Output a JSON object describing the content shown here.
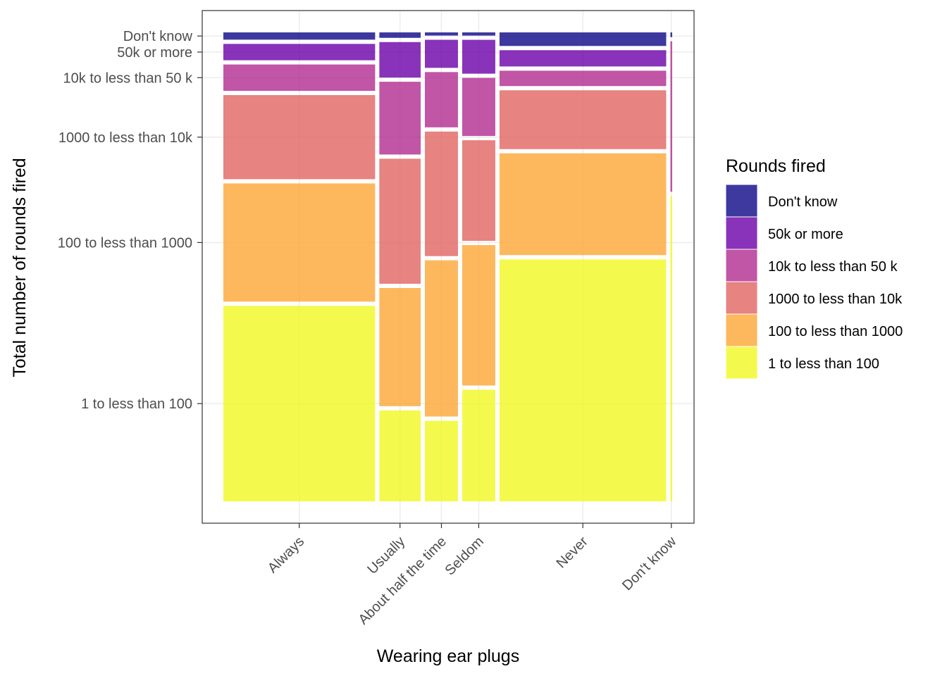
{
  "chart_data": {
    "type": "mosaic",
    "xlabel": "Wearing ear plugs",
    "ylabel": "Total number of rounds fired",
    "grid": true,
    "legend_position": "right",
    "legend_title": "Rounds fired",
    "categories": [
      "Always",
      "Usually",
      "About half the time",
      "Seldom",
      "Never",
      "Don't know"
    ],
    "category_widths": [
      0.3325,
      0.0905,
      0.0725,
      0.0725,
      0.3652,
      0.0039
    ],
    "levels": [
      "1 to less than 100",
      "100 to less than 1000",
      "1000 to less than 10k",
      "10k to less than 50 k",
      "50k or more",
      "Don't know"
    ],
    "level_colors": [
      "#F0F921",
      "#FCA636",
      "#E16462",
      "#B12A90",
      "#6A00A8",
      "#0D0887"
    ],
    "y_tick_labels": [
      "1 to less than 100",
      "100 to less than 1000",
      "1000 to less than 10k",
      "10k to less than 50 k",
      "50k or more",
      "Don't know"
    ],
    "y_axis_category_column": "Always",
    "y_range": [
      0,
      1
    ],
    "proportions": [
      [
        0.43,
        0.26,
        0.185,
        0.058,
        0.036,
        0.016
      ],
      [
        0.2,
        0.26,
        0.275,
        0.16,
        0.078,
        0.012
      ],
      [
        0.178,
        0.345,
        0.275,
        0.122,
        0.062,
        0.007
      ],
      [
        0.244,
        0.307,
        0.22,
        0.127,
        0.074,
        0.007
      ],
      [
        0.535,
        0.225,
        0.13,
        0.034,
        0.036,
        0.03
      ],
      [
        0.65,
        0.0,
        0.0,
        0.32,
        0.0,
        0.01
      ]
    ]
  },
  "legend": {
    "title": "Rounds fired",
    "items": [
      {
        "label": "Don't know",
        "color": "#0D0887"
      },
      {
        "label": "50k or more",
        "color": "#6A00A8"
      },
      {
        "label": "10k to less than 50 k",
        "color": "#B12A90"
      },
      {
        "label": "1000 to less than 10k",
        "color": "#E16462"
      },
      {
        "label": "100 to less than 1000",
        "color": "#FCA636"
      },
      {
        "label": "1 to less than 100",
        "color": "#F0F921"
      }
    ]
  }
}
